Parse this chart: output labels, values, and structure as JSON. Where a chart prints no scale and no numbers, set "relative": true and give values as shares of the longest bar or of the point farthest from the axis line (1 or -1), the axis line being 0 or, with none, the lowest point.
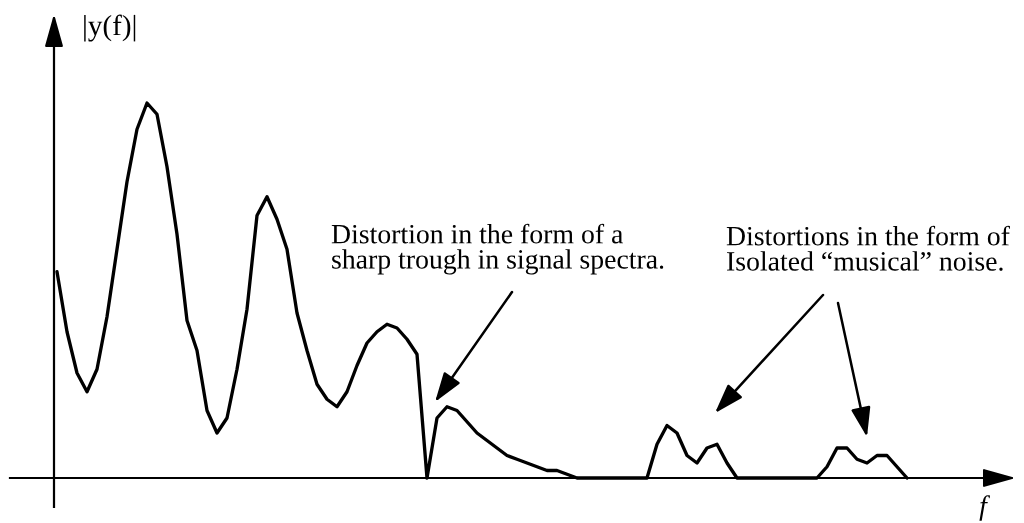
{
  "chart_data": {
    "type": "line",
    "relative": true,
    "xlabel": "f",
    "ylabel": "|y(f)|",
    "annotations": [
      "Distortion in the form of a\nsharp trough in signal spectra.",
      "Distortions in the form of\nIsolated “musical” noise."
    ],
    "categories": [
      null,
      null,
      null,
      null,
      null,
      null,
      null,
      null,
      null,
      null,
      null,
      null,
      null,
      null,
      null,
      null,
      null,
      null,
      null,
      null,
      null,
      null,
      null,
      null,
      null,
      null,
      null,
      null,
      null,
      null,
      null,
      null,
      null,
      null,
      null,
      null,
      null,
      null,
      null,
      null,
      null,
      null,
      null,
      null,
      null,
      null,
      null,
      null,
      null,
      null,
      null,
      null,
      null,
      null,
      null,
      null,
      null,
      null,
      null,
      null,
      null,
      null,
      null,
      null,
      null,
      null,
      null,
      null,
      null,
      null,
      null,
      null,
      null,
      null,
      null,
      null,
      null,
      null,
      null,
      null,
      null,
      null,
      null,
      null,
      null,
      null
    ],
    "values": [
      0.55,
      0.39,
      0.28,
      0.23,
      0.29,
      0.43,
      0.61,
      0.79,
      0.93,
      1.0,
      0.97,
      0.83,
      0.65,
      0.42,
      0.34,
      0.18,
      0.12,
      0.16,
      0.29,
      0.45,
      0.7,
      0.75,
      0.69,
      0.61,
      0.44,
      0.34,
      0.25,
      0.21,
      0.19,
      0.23,
      0.3,
      0.36,
      0.39,
      0.41,
      0.4,
      0.37,
      0.33,
      0.0,
      0.16,
      0.19,
      0.18,
      0.15,
      0.12,
      0.1,
      0.08,
      0.06,
      0.05,
      0.04,
      0.03,
      0.02,
      0.02,
      0.01,
      0,
      0,
      0,
      0,
      0,
      0,
      0,
      0,
      0.09,
      0.14,
      0.12,
      0.06,
      0.04,
      0.08,
      0.09,
      0.04,
      0,
      0,
      0,
      0,
      0,
      0,
      0,
      0,
      0,
      0.03,
      0.08,
      0.08,
      0.05,
      0.04,
      0.06,
      0.06,
      0.03,
      0
    ],
    "color": "#000000"
  }
}
